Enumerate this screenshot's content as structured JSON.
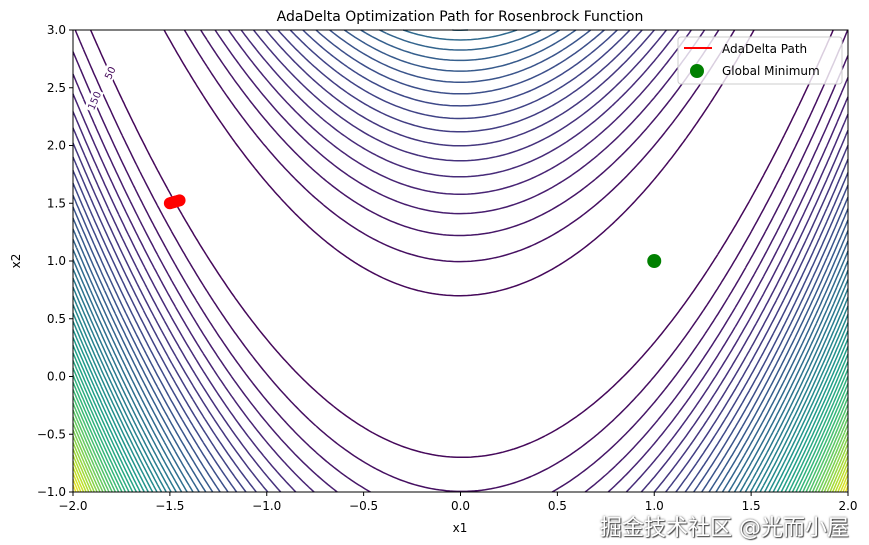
{
  "chart_data": {
    "type": "contour",
    "title": "AdaDelta Optimization Path for Rosenbrock Function",
    "xlabel": "x1",
    "ylabel": "x2",
    "xlim": [
      -2,
      2
    ],
    "ylim": [
      -1,
      3
    ],
    "xticks": [
      "−2.0",
      "−1.5",
      "−1.0",
      "−0.5",
      "0.0",
      "0.5",
      "1.0",
      "1.5",
      "2.0"
    ],
    "yticks": [
      "−1.0",
      "−0.5",
      "0.0",
      "0.5",
      "1.0",
      "1.5",
      "2.0",
      "2.5",
      "3.0"
    ],
    "function": "(1 - x1)^2 + 100 (x2 - x1^2)^2",
    "level_step": 50,
    "level_max": 2500,
    "colormap": "viridis",
    "series": [
      {
        "name": "AdaDelta Path",
        "type": "line",
        "color": "#ff0000",
        "x": [
          -1.5,
          -1.49,
          -1.48,
          -1.47,
          -1.46,
          -1.45
        ],
        "y": [
          1.5,
          1.505,
          1.51,
          1.515,
          1.52,
          1.525
        ]
      },
      {
        "name": "Global Minimum",
        "type": "scatter",
        "color": "#008000",
        "x": [
          1
        ],
        "y": [
          1
        ]
      }
    ],
    "legend": {
      "placement": "top-right",
      "entries": [
        "AdaDelta Path",
        "Global Minimum"
      ]
    }
  },
  "watermark": "掘金技术社区 @光而小屋"
}
